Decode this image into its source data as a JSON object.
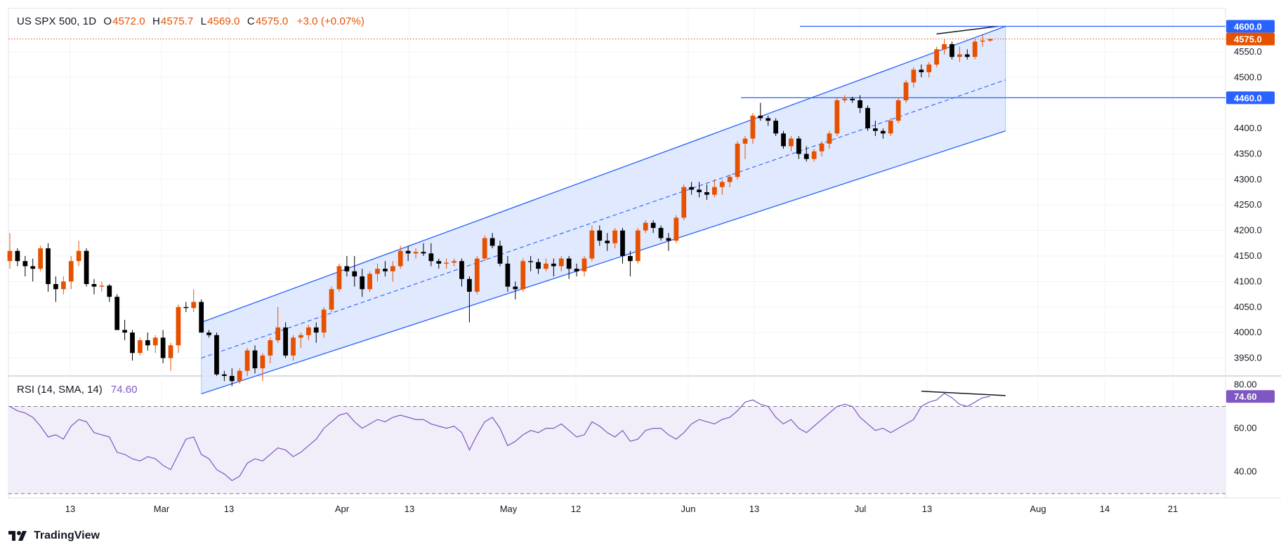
{
  "header": {
    "symbol": "US SPX 500, 1D",
    "o_label": "O",
    "o_value": "4572.0",
    "h_label": "H",
    "h_value": "4575.7",
    "l_label": "L",
    "l_value": "4569.0",
    "c_label": "C",
    "c_value": "4575.0",
    "change": "+3.0 (+0.07%)"
  },
  "rsi_header": {
    "name": "RSI (14, SMA, 14)",
    "value": "74.60"
  },
  "brand": {
    "name": "TradingView"
  },
  "colors": {
    "up": "#e65100",
    "down": "#000000",
    "channel": "#2962ff",
    "channel_fill": "#dbe5fd",
    "rsi": "#7e57c2",
    "rsi_band": "#f1eefa",
    "hline": "#2962ff",
    "price_dotted": "#e65100"
  },
  "price_labels": {
    "last": "4575.0",
    "line1": "4600.0",
    "line2": "4460.0"
  },
  "rsi_tag": "74.60",
  "chart_data": [
    {
      "type": "candlestick",
      "title": "US SPX 500, 1D",
      "ylim": [
        3915,
        4635
      ],
      "y_ticks": [
        "4550.0",
        "4500.0",
        "4400.0",
        "4350.0",
        "4300.0",
        "4250.0",
        "4200.0",
        "4150.0",
        "4100.0",
        "4050.0",
        "4000.0",
        "3950.0"
      ],
      "x_ticks": [
        "13",
        "Mar",
        "13",
        "Apr",
        "13",
        "May",
        "12",
        "Jun",
        "13",
        "Jul",
        "13",
        "Aug",
        "14",
        "21"
      ],
      "horizontal_levels": [
        4600,
        4460
      ],
      "last_price": 4575.0,
      "candles": [
        [
          4140,
          4195,
          4125,
          4160
        ],
        [
          4160,
          4165,
          4130,
          4140
        ],
        [
          4140,
          4150,
          4110,
          4130
        ],
        [
          4130,
          4145,
          4100,
          4125
        ],
        [
          4125,
          4170,
          4120,
          4165
        ],
        [
          4165,
          4175,
          4080,
          4095
        ],
        [
          4095,
          4110,
          4060,
          4085
        ],
        [
          4085,
          4110,
          4075,
          4100
        ],
        [
          4100,
          4150,
          4085,
          4140
        ],
        [
          4140,
          4180,
          4130,
          4160
        ],
        [
          4160,
          4165,
          4090,
          4095
        ],
        [
          4095,
          4105,
          4075,
          4090
        ],
        [
          4090,
          4100,
          4080,
          4092
        ],
        [
          4092,
          4095,
          4060,
          4070
        ],
        [
          4070,
          4075,
          4010,
          4005
        ],
        [
          4005,
          4025,
          3985,
          4000
        ],
        [
          4000,
          4005,
          3945,
          3960
        ],
        [
          3960,
          3990,
          3955,
          3985
        ],
        [
          3985,
          4000,
          3965,
          3975
        ],
        [
          3975,
          3995,
          3960,
          3990
        ],
        [
          3990,
          4005,
          3940,
          3950
        ],
        [
          3950,
          3980,
          3925,
          3975
        ],
        [
          3975,
          4055,
          3960,
          4050
        ],
        [
          4050,
          4060,
          4040,
          4048
        ],
        [
          4048,
          4085,
          4040,
          4060
        ],
        [
          4060,
          4065,
          4000,
          4000
        ],
        [
          4000,
          4005,
          3990,
          3995
        ],
        [
          3995,
          4000,
          3915,
          3918
        ],
        [
          3918,
          3925,
          3905,
          3915
        ],
        [
          3915,
          3930,
          3895,
          3905
        ],
        [
          3905,
          3930,
          3900,
          3925
        ],
        [
          3925,
          3970,
          3915,
          3965
        ],
        [
          3965,
          3975,
          3920,
          3930
        ],
        [
          3930,
          3960,
          3905,
          3955
        ],
        [
          3955,
          3990,
          3940,
          3985
        ],
        [
          3985,
          4050,
          3980,
          4010
        ],
        [
          4010,
          4020,
          3950,
          3955
        ],
        [
          3955,
          3995,
          3945,
          3990
        ],
        [
          3990,
          4000,
          3970,
          3995
        ],
        [
          3995,
          4015,
          3985,
          4010
        ],
        [
          4010,
          4020,
          3980,
          4000
        ],
        [
          4000,
          4050,
          3990,
          4045
        ],
        [
          4045,
          4090,
          4040,
          4085
        ],
        [
          4085,
          4135,
          4080,
          4130
        ],
        [
          4130,
          4150,
          4110,
          4120
        ],
        [
          4120,
          4150,
          4090,
          4110
        ],
        [
          4110,
          4125,
          4070,
          4085
        ],
        [
          4085,
          4120,
          4080,
          4115
        ],
        [
          4115,
          4135,
          4100,
          4125
        ],
        [
          4125,
          4140,
          4110,
          4120
        ],
        [
          4120,
          4140,
          4100,
          4130
        ],
        [
          4130,
          4170,
          4125,
          4160
        ],
        [
          4160,
          4170,
          4140,
          4155
        ],
        [
          4155,
          4165,
          4145,
          4158
        ],
        [
          4158,
          4175,
          4150,
          4155
        ],
        [
          4155,
          4175,
          4130,
          4140
        ],
        [
          4140,
          4145,
          4125,
          4135
        ],
        [
          4135,
          4145,
          4125,
          4137
        ],
        [
          4137,
          4145,
          4130,
          4140
        ],
        [
          4140,
          4145,
          4090,
          4105
        ],
        [
          4105,
          4110,
          4020,
          4080
        ],
        [
          4080,
          4150,
          4075,
          4145
        ],
        [
          4145,
          4190,
          4140,
          4185
        ],
        [
          4185,
          4195,
          4165,
          4170
        ],
        [
          4170,
          4180,
          4130,
          4135
        ],
        [
          4135,
          4150,
          4080,
          4090
        ],
        [
          4090,
          4100,
          4065,
          4085
        ],
        [
          4085,
          4145,
          4080,
          4140
        ],
        [
          4140,
          4150,
          4120,
          4138
        ],
        [
          4138,
          4145,
          4115,
          4125
        ],
        [
          4125,
          4145,
          4120,
          4135
        ],
        [
          4135,
          4145,
          4110,
          4130
        ],
        [
          4130,
          4150,
          4120,
          4145
        ],
        [
          4145,
          4150,
          4105,
          4125
        ],
        [
          4125,
          4135,
          4110,
          4120
        ],
        [
          4120,
          4150,
          4110,
          4145
        ],
        [
          4145,
          4210,
          4140,
          4200
        ],
        [
          4200,
          4210,
          4170,
          4180
        ],
        [
          4180,
          4195,
          4160,
          4175
        ],
        [
          4175,
          4205,
          4165,
          4200
        ],
        [
          4200,
          4205,
          4135,
          4150
        ],
        [
          4150,
          4160,
          4110,
          4140
        ],
        [
          4140,
          4205,
          4135,
          4200
        ],
        [
          4200,
          4220,
          4195,
          4215
        ],
        [
          4215,
          4220,
          4195,
          4205
        ],
        [
          4205,
          4210,
          4180,
          4185
        ],
        [
          4185,
          4195,
          4160,
          4180
        ],
        [
          4180,
          4230,
          4175,
          4225
        ],
        [
          4225,
          4290,
          4220,
          4285
        ],
        [
          4285,
          4295,
          4270,
          4280
        ],
        [
          4280,
          4295,
          4265,
          4275
        ],
        [
          4275,
          4290,
          4260,
          4270
        ],
        [
          4270,
          4300,
          4265,
          4285
        ],
        [
          4285,
          4300,
          4270,
          4295
        ],
        [
          4295,
          4310,
          4285,
          4305
        ],
        [
          4305,
          4375,
          4300,
          4370
        ],
        [
          4370,
          4385,
          4340,
          4380
        ],
        [
          4380,
          4430,
          4370,
          4425
        ],
        [
          4425,
          4450,
          4415,
          4420
        ],
        [
          4420,
          4425,
          4405,
          4415
        ],
        [
          4415,
          4420,
          4385,
          4390
        ],
        [
          4390,
          4395,
          4360,
          4365
        ],
        [
          4365,
          4385,
          4355,
          4380
        ],
        [
          4380,
          4385,
          4340,
          4350
        ],
        [
          4350,
          4365,
          4335,
          4340
        ],
        [
          4340,
          4360,
          4335,
          4355
        ],
        [
          4355,
          4375,
          4345,
          4370
        ],
        [
          4370,
          4395,
          4360,
          4390
        ],
        [
          4390,
          4460,
          4385,
          4455
        ],
        [
          4455,
          4465,
          4450,
          4458
        ],
        [
          4458,
          4462,
          4450,
          4455
        ],
        [
          4455,
          4465,
          4430,
          4440
        ],
        [
          4440,
          4445,
          4395,
          4400
        ],
        [
          4400,
          4415,
          4385,
          4395
        ],
        [
          4395,
          4400,
          4380,
          4390
        ],
        [
          4390,
          4420,
          4385,
          4415
        ],
        [
          4415,
          4460,
          4410,
          4455
        ],
        [
          4455,
          4495,
          4450,
          4490
        ],
        [
          4490,
          4520,
          4480,
          4515
        ],
        [
          4515,
          4525,
          4500,
          4510
        ],
        [
          4510,
          4530,
          4500,
          4525
        ],
        [
          4525,
          4560,
          4520,
          4555
        ],
        [
          4555,
          4575,
          4545,
          4565
        ],
        [
          4565,
          4570,
          4535,
          4540
        ],
        [
          4540,
          4560,
          4530,
          4545
        ],
        [
          4545,
          4555,
          4535,
          4540
        ],
        [
          4540,
          4575,
          4535,
          4570
        ],
        [
          4570,
          4585,
          4560,
          4572
        ],
        [
          4572,
          4575.7,
          4569,
          4575
        ]
      ],
      "channel": {
        "upper": [
          [
            25,
            4020
          ],
          [
            130,
            4600
          ]
        ],
        "middle": [
          [
            25,
            3950
          ],
          [
            130,
            4495
          ]
        ],
        "lower": [
          [
            25,
            3880
          ],
          [
            130,
            4395
          ]
        ],
        "upper_trend": [
          [
            121,
            4585
          ],
          [
            129,
            4600
          ]
        ]
      }
    },
    {
      "type": "line",
      "title": "RSI (14, SMA, 14)",
      "ylim": [
        28,
        84
      ],
      "y_ticks": [
        "80.00",
        "60.00",
        "40.00"
      ],
      "levels": [
        70,
        30
      ],
      "last_value": 74.6,
      "series": [
        {
          "values": [
            70,
            68,
            67,
            65,
            61,
            56,
            57,
            55,
            61,
            64,
            63,
            58,
            57,
            56,
            49,
            48,
            46,
            45,
            47,
            46,
            43,
            41,
            48,
            55,
            56,
            48,
            46,
            41,
            39,
            36,
            38,
            44,
            46,
            45,
            48,
            51,
            50,
            47,
            49,
            52,
            55,
            60,
            63,
            66,
            67,
            63,
            60,
            62,
            64,
            63,
            65,
            66,
            65,
            64,
            64,
            62,
            61,
            60,
            61,
            58,
            50,
            57,
            63,
            65,
            60,
            52,
            54,
            57,
            59,
            58,
            60,
            60,
            62,
            59,
            56,
            57,
            63,
            61,
            58,
            56,
            59,
            54,
            55,
            59,
            60,
            60,
            57,
            55,
            58,
            62,
            64,
            63,
            62,
            64,
            65,
            68,
            72,
            73,
            71,
            70,
            65,
            62,
            64,
            60,
            58,
            61,
            64,
            67,
            70,
            71,
            70,
            65,
            62,
            59,
            60,
            58,
            60,
            62,
            64,
            70,
            72,
            73,
            76,
            74,
            71,
            70,
            72,
            74,
            74.6
          ]
        }
      ],
      "trendline": [
        [
          119,
          77
        ],
        [
          130,
          75
        ]
      ]
    }
  ]
}
